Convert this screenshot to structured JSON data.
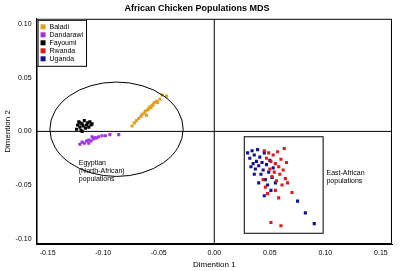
{
  "chart_data": {
    "type": "scatter",
    "title": "African Chicken Populations MDS",
    "x_label": "Dimention 1",
    "y_label": "Dimention 2",
    "xlim": [
      -0.16,
      0.16
    ],
    "ylim": [
      -0.105,
      0.105
    ],
    "xticks": [
      -0.15,
      {
        "value": -0.1,
        "label": "-0.10"
      },
      -0.05,
      {
        "value": 0,
        "label": "0.00"
      },
      0.05,
      {
        "value": 0.1,
        "label": "0.10"
      },
      0.15
    ],
    "yticks": [
      {
        "value": -0.1,
        "label": "-0.10"
      },
      -0.05,
      {
        "value": 0,
        "label": "0.00"
      },
      0.05,
      {
        "value": 0.1,
        "label": "0.10"
      }
    ],
    "grid": false,
    "legend": "upper left",
    "marker": "square",
    "series": [
      {
        "name": "Baladi",
        "color": "#e0a21e",
        "x": [
          -0.074,
          -0.072,
          -0.07,
          -0.068,
          -0.066,
          -0.065,
          -0.063,
          -0.062,
          -0.06,
          -0.059,
          -0.058,
          -0.057,
          -0.056,
          -0.055,
          -0.054,
          -0.052,
          -0.051,
          -0.049,
          -0.047,
          -0.043,
          -0.061
        ],
        "values": [
          0.005,
          0.008,
          0.01,
          0.012,
          0.014,
          0.016,
          0.017,
          0.019,
          0.02,
          0.021,
          0.023,
          0.022,
          0.024,
          0.025,
          0.027,
          0.028,
          0.027,
          0.03,
          0.034,
          0.033,
          0.015
        ]
      },
      {
        "name": "Dandarawi",
        "color": "#a035e0",
        "x": [
          -0.121,
          -0.119,
          -0.117,
          -0.115,
          -0.113,
          -0.111,
          -0.109,
          -0.108,
          -0.106,
          -0.104,
          -0.101,
          -0.098,
          -0.094,
          -0.113,
          -0.11,
          -0.086
        ],
        "values": [
          -0.012,
          -0.01,
          -0.011,
          -0.009,
          -0.008,
          -0.009,
          -0.007,
          -0.006,
          -0.006,
          -0.005,
          -0.004,
          -0.004,
          -0.003,
          -0.011,
          -0.005,
          -0.003
        ]
      },
      {
        "name": "Fayoumi",
        "color": "#000000",
        "x": [
          -0.124,
          -0.123,
          -0.122,
          -0.121,
          -0.12,
          -0.119,
          -0.118,
          -0.117,
          -0.116,
          -0.115,
          -0.114,
          -0.113,
          -0.112,
          -0.111,
          -0.11,
          -0.119,
          -0.121
        ],
        "values": [
          0.002,
          0.006,
          0.009,
          0.004,
          0.001,
          0.007,
          0.005,
          0.01,
          0.003,
          0.006,
          0.008,
          0.004,
          0.009,
          0.006,
          0.007,
          0.0,
          0.008
        ]
      },
      {
        "name": "Rwanda",
        "color": "#e01a1a",
        "x": [
          0.045,
          0.047,
          0.049,
          0.05,
          0.051,
          0.052,
          0.053,
          0.054,
          0.055,
          0.056,
          0.057,
          0.058,
          0.059,
          0.06,
          0.061,
          0.062,
          0.063,
          0.064,
          0.065,
          0.046,
          0.048,
          0.055,
          0.058,
          0.07,
          0.051,
          0.06,
          0.066,
          0.044
        ],
        "values": [
          -0.018,
          -0.025,
          -0.02,
          -0.035,
          -0.028,
          -0.042,
          -0.022,
          -0.038,
          -0.03,
          -0.046,
          -0.019,
          -0.033,
          -0.04,
          -0.026,
          -0.05,
          -0.036,
          -0.016,
          -0.044,
          -0.029,
          -0.052,
          -0.058,
          -0.055,
          -0.062,
          -0.057,
          -0.085,
          -0.088,
          -0.048,
          -0.045
        ]
      },
      {
        "name": "Uganda",
        "color": "#12128c",
        "x": [
          0.03,
          0.032,
          0.034,
          0.035,
          0.036,
          0.038,
          0.037,
          0.039,
          0.04,
          0.041,
          0.042,
          0.043,
          0.044,
          0.045,
          0.046,
          0.047,
          0.048,
          0.049,
          0.05,
          0.051,
          0.052,
          0.053,
          0.055,
          0.033,
          0.036,
          0.075,
          0.082,
          0.09,
          0.045,
          0.04
        ],
        "values": [
          -0.02,
          -0.025,
          -0.018,
          -0.03,
          -0.022,
          -0.028,
          -0.035,
          -0.017,
          -0.032,
          -0.024,
          -0.04,
          -0.029,
          -0.036,
          -0.02,
          -0.045,
          -0.031,
          -0.05,
          -0.038,
          -0.027,
          -0.055,
          -0.043,
          -0.034,
          -0.048,
          -0.033,
          -0.04,
          -0.065,
          -0.076,
          -0.086,
          -0.06,
          -0.048
        ]
      }
    ],
    "annotations": [
      {
        "shape": "vline",
        "x": 0
      },
      {
        "shape": "hline",
        "y": 0
      },
      {
        "shape": "ellipse",
        "xlim": [
          -0.148,
          -0.028
        ],
        "ylim": [
          -0.042,
          0.046
        ]
      },
      {
        "shape": "rect",
        "xlim": [
          0.027,
          0.098
        ],
        "ylim": [
          -0.095,
          -0.005
        ]
      },
      {
        "text": [
          "Egyptian",
          "(North-African)",
          "populations"
        ],
        "x": -0.122,
        "y": -0.026
      },
      {
        "text": [
          "East-African",
          "populations"
        ],
        "x": 0.101,
        "y": -0.036
      }
    ]
  }
}
